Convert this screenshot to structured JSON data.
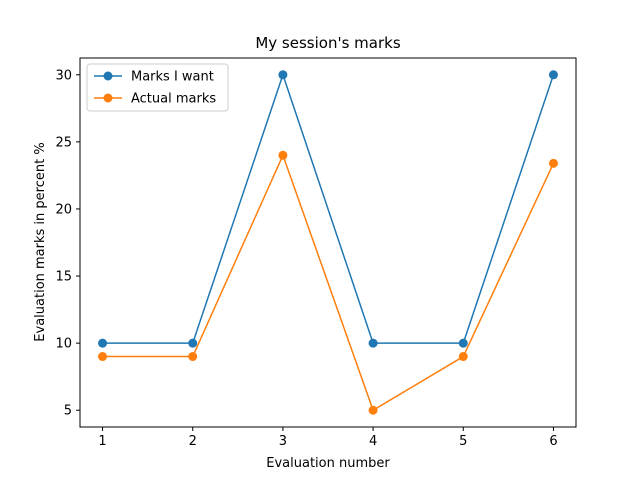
{
  "chart_data": {
    "type": "line",
    "title": "My session's marks",
    "xlabel": "Evaluation number",
    "ylabel": "Evaluation marks in percent %",
    "x": [
      1,
      2,
      3,
      4,
      5,
      6
    ],
    "xticks": [
      "1",
      "2",
      "3",
      "4",
      "5",
      "6"
    ],
    "yticks": [
      "5",
      "10",
      "15",
      "20",
      "25",
      "30"
    ],
    "xlim": [
      0.75,
      6.25
    ],
    "ylim": [
      3.75,
      31.25
    ],
    "grid": false,
    "legend_position": "upper-left",
    "series": [
      {
        "name": "Marks I want",
        "color": "#1f77b4",
        "values": [
          10,
          10,
          30,
          10,
          10,
          30
        ]
      },
      {
        "name": "Actual marks",
        "color": "#ff7f0e",
        "values": [
          9,
          9,
          24,
          5,
          9,
          23.4
        ]
      }
    ]
  }
}
